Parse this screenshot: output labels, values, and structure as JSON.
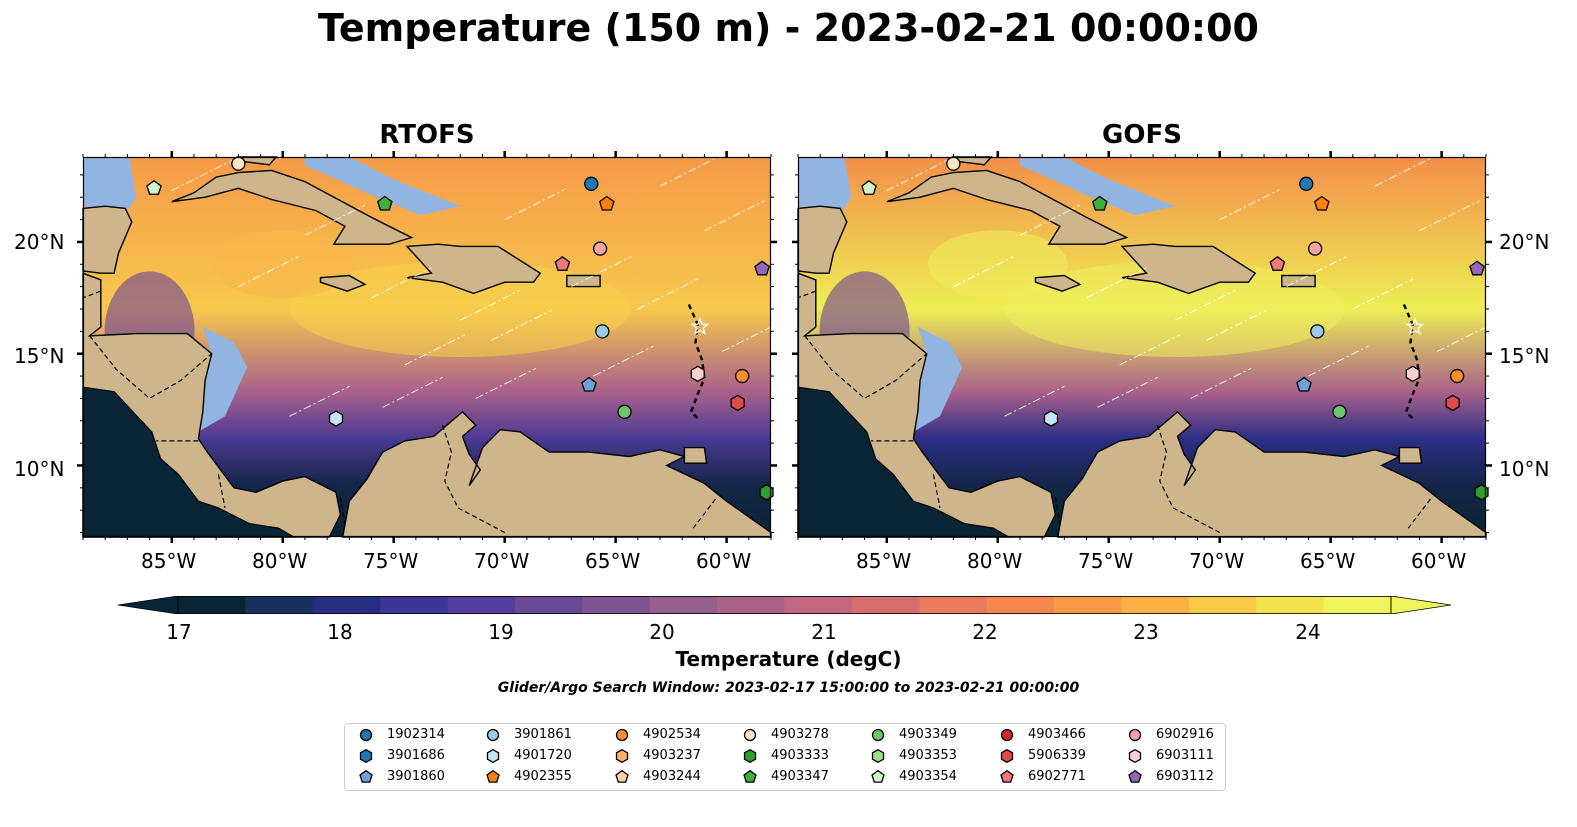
{
  "title": "Temperature (150 m) - 2023-02-21 00:00:00",
  "panels": [
    {
      "title": "RTOFS",
      "colors": {
        "north": "#f59a48",
        "center": "#f7c94e",
        "south": "#4b3a94"
      }
    },
    {
      "title": "GOFS",
      "colors": {
        "north": "#f38f4a",
        "center": "#eeee55",
        "south": "#2d2f86"
      }
    }
  ],
  "axes": {
    "lon_labels": [
      "85°W",
      "80°W",
      "75°W",
      "70°W",
      "65°W",
      "60°W"
    ],
    "lat_labels": [
      "20°N",
      "15°N",
      "10°N"
    ],
    "lon_values": [
      -85,
      -80,
      -75,
      -70,
      -65,
      -60
    ],
    "lat_values": [
      20,
      15,
      10
    ],
    "lon_range": [
      -89,
      -58
    ],
    "lat_range": [
      6.8,
      23.8
    ]
  },
  "colorbar": {
    "label": "Temperature (degC)",
    "ticks": [
      "17",
      "18",
      "19",
      "20",
      "21",
      "22",
      "23",
      "24"
    ],
    "min": 16.75,
    "max": 24.75,
    "colors": [
      "#092434",
      "#17305e",
      "#262f7f",
      "#3a3596",
      "#533e9b",
      "#6a4a97",
      "#7e5493",
      "#955f8e",
      "#aa6387",
      "#c1687e",
      "#d66e6f",
      "#e87a5e",
      "#f4884f",
      "#f99a47",
      "#fbb044",
      "#f9ca46",
      "#f3e24c",
      "#eff45a"
    ]
  },
  "search_window": "Glider/Argo Search Window: 2023-02-17 15:00:00 to 2023-02-21 00:00:00",
  "legend": [
    {
      "id": "1902314",
      "marker": "circle",
      "color": "#1f77b4"
    },
    {
      "id": "3901686",
      "marker": "hexagon",
      "color": "#1f77b4"
    },
    {
      "id": "3901860",
      "marker": "pentagon",
      "color": "#6fa3d8"
    },
    {
      "id": "3901861",
      "marker": "circle",
      "color": "#9ecae9"
    },
    {
      "id": "4901720",
      "marker": "hexagon",
      "color": "#c6e4f7"
    },
    {
      "id": "4902355",
      "marker": "pentagon",
      "color": "#ff7f0e"
    },
    {
      "id": "4902534",
      "marker": "circle",
      "color": "#ff8c2e"
    },
    {
      "id": "4903237",
      "marker": "hexagon",
      "color": "#ffb06b"
    },
    {
      "id": "4903244",
      "marker": "pentagon",
      "color": "#ffd0a0"
    },
    {
      "id": "4903278",
      "marker": "circle",
      "color": "#fde3c8"
    },
    {
      "id": "4903333",
      "marker": "hexagon",
      "color": "#2ca02c"
    },
    {
      "id": "4903347",
      "marker": "pentagon",
      "color": "#3fae3f"
    },
    {
      "id": "4903349",
      "marker": "circle",
      "color": "#6cc66c"
    },
    {
      "id": "4903353",
      "marker": "hexagon",
      "color": "#98df8a"
    },
    {
      "id": "4903354",
      "marker": "pentagon",
      "color": "#d2f5cc"
    },
    {
      "id": "4903466",
      "marker": "circle",
      "color": "#d62728"
    },
    {
      "id": "5906339",
      "marker": "hexagon",
      "color": "#e04a4a"
    },
    {
      "id": "6902771",
      "marker": "pentagon",
      "color": "#ef7878"
    },
    {
      "id": "6902916",
      "marker": "circle",
      "color": "#f4a3a3"
    },
    {
      "id": "6903111",
      "marker": "hexagon",
      "color": "#fbd0d0"
    },
    {
      "id": "6903112",
      "marker": "pentagon",
      "color": "#9467bd"
    }
  ],
  "floats": [
    {
      "id": "4903278",
      "lon": -82.0,
      "lat": 23.5
    },
    {
      "id": "4903354",
      "lon": -85.8,
      "lat": 22.4
    },
    {
      "id": "4903347",
      "lon": -75.4,
      "lat": 21.7
    },
    {
      "id": "1902314",
      "lon": -66.1,
      "lat": 22.6
    },
    {
      "id": "4902355",
      "lon": -65.4,
      "lat": 21.7
    },
    {
      "id": "6902916",
      "lon": -65.7,
      "lat": 19.7
    },
    {
      "id": "6902771",
      "lon": -67.4,
      "lat": 19.0
    },
    {
      "id": "6903112",
      "lon": -58.4,
      "lat": 18.8
    },
    {
      "id": "3901861",
      "lon": -65.6,
      "lat": 16.0
    },
    {
      "id": "6903111",
      "lon": -61.3,
      "lat": 14.1
    },
    {
      "id": "4902534",
      "lon": -59.3,
      "lat": 14.0
    },
    {
      "id": "3901860",
      "lon": -66.2,
      "lat": 13.6
    },
    {
      "id": "5906339",
      "lon": -59.5,
      "lat": 12.8
    },
    {
      "id": "4903349",
      "lon": -64.6,
      "lat": 12.4
    },
    {
      "id": "4901720",
      "lon": -77.6,
      "lat": 12.1
    },
    {
      "id": "4903333",
      "lon": -58.2,
      "lat": 8.8
    }
  ]
}
